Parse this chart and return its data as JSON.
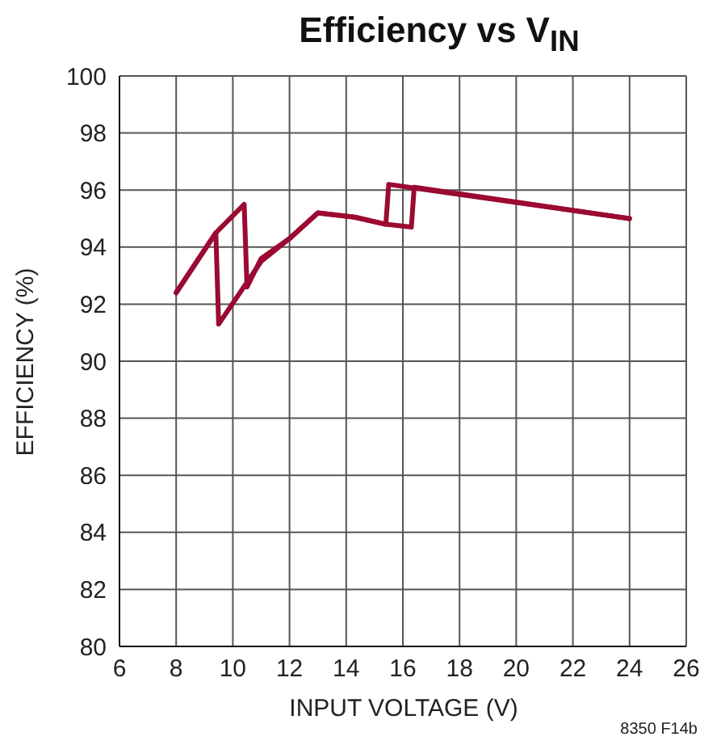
{
  "chart_data": {
    "type": "line",
    "title": "Efficiency vs V$_{IN}$",
    "xlabel": "INPUT VOLTAGE (V)",
    "ylabel": "EFFICIENCY (%)",
    "annotations": [
      "8350 F14b"
    ],
    "series": [
      {
        "color": "#9b0a32",
        "x": [
          8,
          9.4,
          10.4,
          10.5,
          11,
          12,
          13,
          14.3,
          15.4,
          15.5,
          24
        ],
        "values": [
          92.4,
          94.5,
          95.5,
          92.6,
          93.6,
          94.3,
          95.2,
          95.05,
          94.8,
          96.2,
          95.0
        ]
      },
      {
        "color": "#9b0a32",
        "x": [
          8,
          9.4,
          9.5,
          11,
          12,
          13,
          14.3,
          15.4,
          16.3,
          16.4,
          24
        ],
        "values": [
          92.4,
          94.5,
          91.3,
          93.5,
          94.3,
          95.2,
          95.05,
          94.8,
          94.7,
          96.1,
          95.0
        ]
      }
    ],
    "marker": "none",
    "line_style": "solid",
    "xlim": [
      6,
      26
    ],
    "xticks": [
      6,
      8,
      10,
      12,
      14,
      16,
      18,
      20,
      22,
      24,
      26
    ],
    "ylim": [
      80,
      100
    ],
    "yticks": [
      80,
      82,
      84,
      86,
      88,
      90,
      92,
      94,
      96,
      98,
      100
    ],
    "grid": true
  }
}
